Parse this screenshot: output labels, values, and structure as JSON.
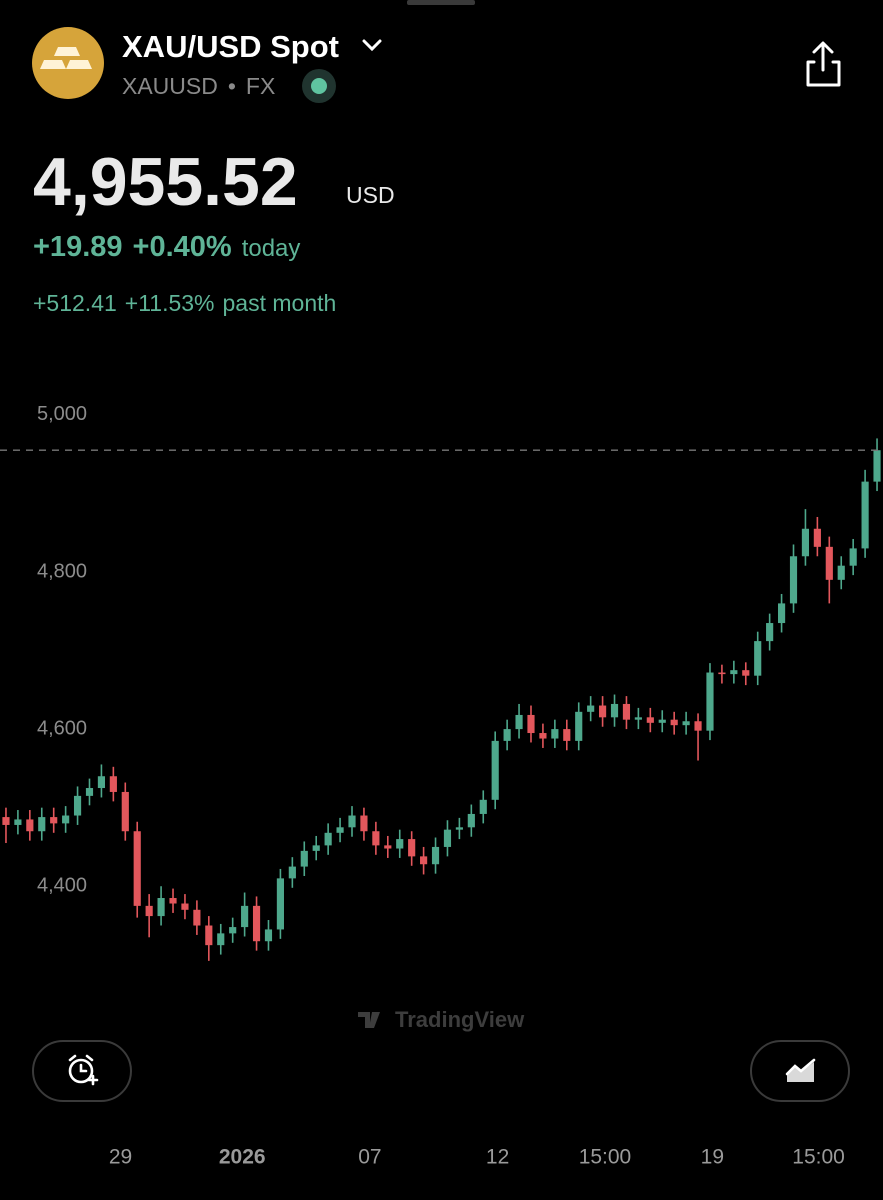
{
  "header": {
    "title": "XAU/USD Spot",
    "symbol": "XAUUSD",
    "separator": "•",
    "exchange": "FX"
  },
  "quote": {
    "price": "4,955.52",
    "currency": "USD",
    "change": "+19.89",
    "change_percent": "+0.40%",
    "period": "today",
    "month_change": "+512.41",
    "month_change_percent": "+11.53%",
    "month_period": "past month"
  },
  "watermark": "TradingView",
  "chart_data": {
    "type": "candlestick",
    "up_color": "#4ea88c",
    "down_color": "#e3575c",
    "grid": false,
    "ylim": [
      4217,
      5108
    ],
    "xlim": [
      -0.5,
      73.5
    ],
    "yticks": [
      {
        "value": 4400,
        "label": "4,400"
      },
      {
        "value": 4600,
        "label": "4,600"
      },
      {
        "value": 4800,
        "label": "4,800"
      },
      {
        "value": 5000,
        "label": "5,000"
      }
    ],
    "xticks": [
      {
        "value": 9.6,
        "label": "29",
        "bold": false
      },
      {
        "value": 19.8,
        "label": "2026",
        "bold": true
      },
      {
        "value": 30.5,
        "label": "07",
        "bold": false
      },
      {
        "value": 41.2,
        "label": "12",
        "bold": false
      },
      {
        "value": 50.2,
        "label": "15:00",
        "bold": false
      },
      {
        "value": 59.2,
        "label": "19",
        "bold": false
      },
      {
        "value": 68.1,
        "label": "15:00",
        "bold": false
      }
    ],
    "open": [
      4488,
      4478,
      4485,
      4470,
      4488,
      4480,
      4490,
      4515,
      4525,
      4540,
      4520,
      4470,
      4375,
      4362,
      4385,
      4378,
      4370,
      4350,
      4325,
      4340,
      4348,
      4375,
      4330,
      4345,
      4410,
      4425,
      4445,
      4452,
      4468,
      4475,
      4490,
      4470,
      4452,
      4448,
      4460,
      4438,
      4428,
      4450,
      4472,
      4475,
      4492,
      4510,
      4585,
      4600,
      4618,
      4595,
      4588,
      4600,
      4585,
      4622,
      4630,
      4615,
      4632,
      4612,
      4615,
      4608,
      4612,
      4605,
      4610,
      4598,
      4672,
      4670,
      4675,
      4668,
      4712,
      4735,
      4760,
      4820,
      4855,
      4832,
      4790,
      4808,
      4830,
      4915
    ],
    "high": [
      4500,
      4497,
      4497,
      4500,
      4500,
      4502,
      4527,
      4537,
      4555,
      4552,
      4532,
      4482,
      4390,
      4400,
      4397,
      4390,
      4382,
      4362,
      4352,
      4360,
      4392,
      4387,
      4357,
      4422,
      4437,
      4457,
      4464,
      4480,
      4487,
      4502,
      4500,
      4482,
      4464,
      4472,
      4470,
      4450,
      4462,
      4484,
      4487,
      4504,
      4522,
      4597,
      4612,
      4632,
      4630,
      4607,
      4612,
      4612,
      4634,
      4642,
      4642,
      4644,
      4642,
      4627,
      4627,
      4624,
      4622,
      4622,
      4620,
      4684,
      4682,
      4687,
      4685,
      4724,
      4747,
      4772,
      4835,
      4880,
      4870,
      4845,
      4820,
      4842,
      4930,
      4970
    ],
    "low": [
      4455,
      4466,
      4458,
      4458,
      4468,
      4468,
      4478,
      4503,
      4513,
      4508,
      4458,
      4360,
      4335,
      4350,
      4366,
      4358,
      4338,
      4305,
      4313,
      4328,
      4336,
      4318,
      4318,
      4333,
      4398,
      4413,
      4433,
      4440,
      4456,
      4463,
      4458,
      4440,
      4436,
      4436,
      4426,
      4415,
      4416,
      4438,
      4460,
      4463,
      4480,
      4498,
      4573,
      4588,
      4583,
      4576,
      4576,
      4573,
      4573,
      4610,
      4603,
      4603,
      4600,
      4600,
      4596,
      4596,
      4593,
      4593,
      4560,
      4586,
      4658,
      4658,
      4656,
      4656,
      4700,
      4723,
      4748,
      4808,
      4820,
      4760,
      4778,
      4796,
      4818,
      4903
    ],
    "close": [
      4478,
      4485,
      4470,
      4488,
      4480,
      4490,
      4515,
      4525,
      4540,
      4520,
      4470,
      4375,
      4362,
      4385,
      4378,
      4370,
      4350,
      4325,
      4340,
      4348,
      4375,
      4330,
      4345,
      4410,
      4425,
      4445,
      4452,
      4468,
      4475,
      4490,
      4470,
      4452,
      4448,
      4460,
      4438,
      4428,
      4450,
      4472,
      4475,
      4492,
      4510,
      4585,
      4600,
      4618,
      4595,
      4588,
      4600,
      4585,
      4622,
      4630,
      4615,
      4632,
      4612,
      4615,
      4608,
      4612,
      4605,
      4610,
      4598,
      4672,
      4670,
      4675,
      4668,
      4712,
      4735,
      4760,
      4820,
      4855,
      4832,
      4790,
      4808,
      4830,
      4915,
      4955
    ]
  }
}
